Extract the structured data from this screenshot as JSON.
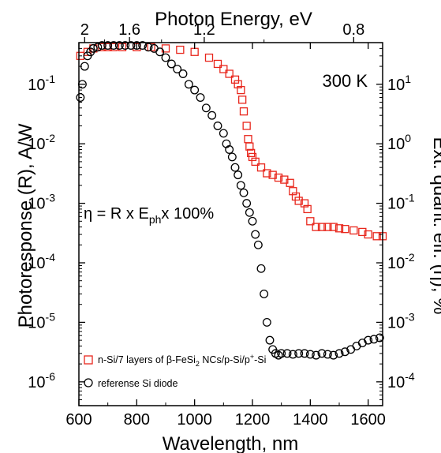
{
  "chart_data": {
    "type": "scatter",
    "title": "",
    "top_xlabel": "Photon Energy, eV",
    "xlabel": "Wavelength, nm",
    "ylabel": "Photoresponse (R), A/W",
    "y2label": "Ext. quant. eff. (η), %",
    "annotation_temp": "300 K",
    "formula": {
      "lead": "η = R x E",
      "sub": "ph",
      "tail": "x 100%"
    },
    "xlim": [
      600,
      1650
    ],
    "ylim_log10": [
      -6.4,
      -0.3
    ],
    "y2lim_log10": [
      -4.4,
      1.7
    ],
    "x_ticks": [
      "600",
      "800",
      "1000",
      "1200",
      "1400",
      "1600"
    ],
    "y_ticks": [
      "-6",
      "-5",
      "-4",
      "-3",
      "-2",
      "-1"
    ],
    "y2_ticks": [
      "-4",
      "-3",
      "-2",
      "-1",
      "0",
      "1"
    ],
    "top_ticks": [
      {
        "label": "2",
        "energy": 2.0
      },
      {
        "label": "1.6",
        "energy": 1.6
      },
      {
        "label": "1.2",
        "energy": 1.2
      },
      {
        "label": "0.8",
        "energy": 0.8
      }
    ],
    "legend": [
      {
        "label_parts": [
          "n-Si/7 layers of β-FeSi",
          "2",
          " NCs/p-Si/p",
          "+",
          "-Si"
        ],
        "color": "#e8261c",
        "marker": "square"
      },
      {
        "label_parts": [
          "referense Si diode"
        ],
        "color": "#000000",
        "marker": "circle"
      }
    ],
    "series": [
      {
        "name": "n-Si/7 layers of β-FeSi2 NCs/p-Si/p+-Si",
        "color": "#e8261c",
        "marker": "square",
        "x": [
          605,
          630,
          650,
          680,
          700,
          720,
          750,
          800,
          850,
          900,
          950,
          1000,
          1050,
          1080,
          1100,
          1120,
          1140,
          1150,
          1160,
          1165,
          1170,
          1180,
          1185,
          1190,
          1195,
          1200,
          1210,
          1230,
          1250,
          1270,
          1290,
          1310,
          1330,
          1340,
          1350,
          1360,
          1380,
          1390,
          1400,
          1420,
          1440,
          1460,
          1480,
          1500,
          1520,
          1550,
          1580,
          1600,
          1630,
          1650
        ],
        "y": [
          0.3,
          0.35,
          0.4,
          0.42,
          0.42,
          0.42,
          0.42,
          0.42,
          0.42,
          0.4,
          0.38,
          0.35,
          0.28,
          0.22,
          0.18,
          0.15,
          0.12,
          0.1,
          0.08,
          0.055,
          0.035,
          0.02,
          0.012,
          0.009,
          0.007,
          0.006,
          0.005,
          0.004,
          0.0032,
          0.003,
          0.0027,
          0.0025,
          0.0022,
          0.0016,
          0.0013,
          0.0011,
          0.001,
          0.0008,
          0.0005,
          0.0004,
          0.0004,
          0.0004,
          0.0004,
          0.00038,
          0.00037,
          0.00035,
          0.00033,
          0.0003,
          0.00028,
          0.00028
        ]
      },
      {
        "name": "referense Si diode",
        "color": "#000000",
        "marker": "circle",
        "x": [
          605,
          612,
          620,
          630,
          640,
          650,
          665,
          680,
          700,
          720,
          740,
          760,
          780,
          800,
          820,
          840,
          860,
          880,
          900,
          920,
          940,
          960,
          980,
          1000,
          1020,
          1040,
          1060,
          1080,
          1100,
          1110,
          1120,
          1130,
          1140,
          1150,
          1160,
          1170,
          1180,
          1190,
          1200,
          1210,
          1220,
          1230,
          1240,
          1250,
          1260,
          1270,
          1280,
          1290,
          1300,
          1320,
          1340,
          1360,
          1380,
          1400,
          1420,
          1440,
          1460,
          1480,
          1500,
          1520,
          1540,
          1560,
          1580,
          1600,
          1620,
          1640
        ],
        "y": [
          0.06,
          0.1,
          0.2,
          0.3,
          0.35,
          0.4,
          0.42,
          0.45,
          0.45,
          0.45,
          0.45,
          0.45,
          0.45,
          0.45,
          0.45,
          0.42,
          0.4,
          0.35,
          0.28,
          0.22,
          0.18,
          0.15,
          0.1,
          0.08,
          0.06,
          0.04,
          0.03,
          0.02,
          0.015,
          0.01,
          0.008,
          0.006,
          0.004,
          0.003,
          0.002,
          0.0015,
          0.001,
          0.0007,
          0.0005,
          0.0003,
          0.0002,
          8e-05,
          3e-05,
          1e-05,
          5e-06,
          3.5e-06,
          3e-06,
          2.8e-06,
          3e-06,
          3e-06,
          2.9e-06,
          3e-06,
          3e-06,
          2.9e-06,
          2.8e-06,
          3e-06,
          2.9e-06,
          2.8e-06,
          3e-06,
          3.2e-06,
          3.5e-06,
          4e-06,
          4.5e-06,
          5e-06,
          5.2e-06,
          5.5e-06
        ]
      }
    ]
  }
}
